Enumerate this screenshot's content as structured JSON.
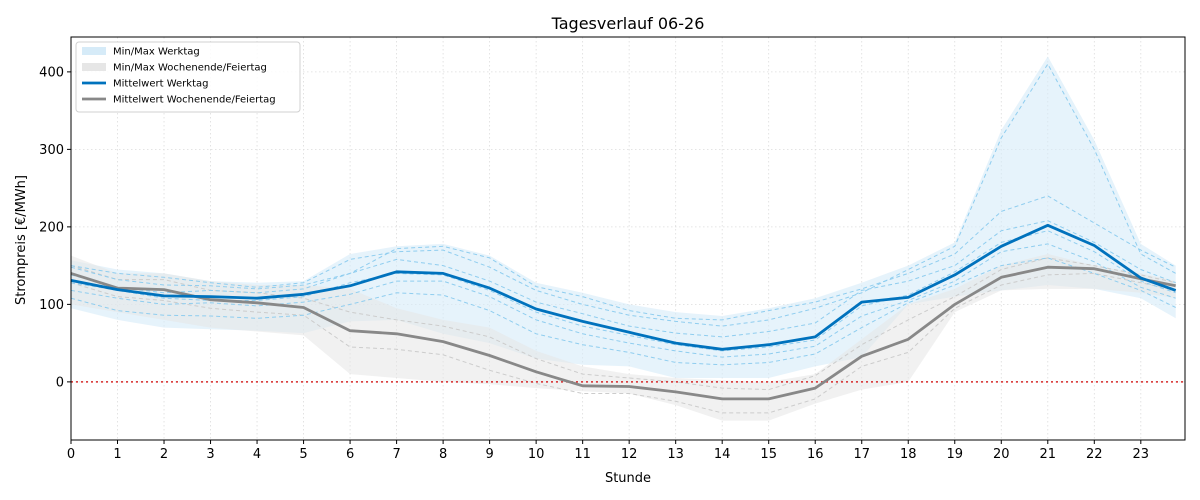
{
  "chart_data": {
    "type": "line",
    "title": "Tagesverlauf 06-26",
    "xlabel": "Stunde",
    "ylabel": "Strompreis [€/MWh]",
    "xlim": [
      0,
      23.95
    ],
    "ylim": [
      -75,
      445
    ],
    "x_ticks": [
      0,
      1,
      2,
      3,
      4,
      5,
      6,
      7,
      8,
      9,
      10,
      11,
      12,
      13,
      14,
      15,
      16,
      17,
      18,
      19,
      20,
      21,
      22,
      23
    ],
    "y_ticks": [
      0,
      100,
      200,
      300,
      400
    ],
    "grid": true,
    "legend_position": "top-left",
    "colors": {
      "weekday": "#0072bd",
      "weekday_band": "#d6ebf8",
      "weekday_daily": "#8fcdef",
      "weekend": "#888888",
      "weekend_band": "#e6e6e6",
      "weekend_daily": "#cccccc",
      "zero_line": "#d62728"
    },
    "legend": [
      {
        "label": "Min/Max Werktag",
        "kind": "band",
        "color": "#d6ebf8"
      },
      {
        "label": "Min/Max Wochenende/Feiertag",
        "kind": "band",
        "color": "#e6e6e6"
      },
      {
        "label": "Mittelwert Werktag",
        "kind": "line",
        "color": "#0072bd"
      },
      {
        "label": "Mittelwert Wochenende/Feiertag",
        "kind": "line",
        "color": "#888888"
      }
    ],
    "reference_line": {
      "y": 0,
      "style": "dotted",
      "color": "#d62728"
    },
    "x_hours": [
      0,
      1,
      2,
      3,
      4,
      5,
      6,
      7,
      8,
      9,
      10,
      11,
      12,
      13,
      14,
      15,
      16,
      17,
      18,
      19,
      20,
      21,
      22,
      23,
      23.75
    ],
    "series": [
      {
        "name": "Mittelwert Werktag",
        "role": "weekday_mean",
        "values": [
          131,
          119,
          111,
          110,
          108,
          113,
          124,
          142,
          140,
          121,
          94,
          78,
          64,
          50,
          42,
          48,
          58,
          103,
          109,
          138,
          175,
          202,
          176,
          134,
          118
        ]
      },
      {
        "name": "Mittelwert Wochenende/Feiertag",
        "role": "weekend_mean",
        "values": [
          140,
          121,
          119,
          106,
          102,
          96,
          66,
          62,
          52,
          34,
          13,
          -5,
          -6,
          -13,
          -22,
          -22,
          -8,
          33,
          55,
          100,
          135,
          148,
          146,
          133,
          124
        ]
      },
      {
        "name": "Min/Max Werktag",
        "role": "weekday_band",
        "min": [
          95,
          80,
          70,
          68,
          66,
          63,
          78,
          80,
          62,
          50,
          30,
          22,
          20,
          5,
          5,
          5,
          20,
          32,
          100,
          110,
          118,
          125,
          120,
          108,
          82
        ],
        "max": [
          157,
          145,
          140,
          130,
          128,
          130,
          165,
          175,
          178,
          163,
          128,
          115,
          100,
          90,
          85,
          95,
          108,
          128,
          150,
          180,
          325,
          420,
          312,
          178,
          150
        ]
      },
      {
        "name": "Min/Max Wochenende/Feiertag",
        "role": "weekend_band",
        "min": [
          100,
          90,
          80,
          70,
          65,
          60,
          10,
          5,
          0,
          -3,
          -8,
          -12,
          -15,
          -30,
          -50,
          -50,
          -28,
          -10,
          0,
          90,
          118,
          120,
          120,
          115,
          108
        ],
        "max": [
          163,
          140,
          140,
          130,
          125,
          125,
          120,
          95,
          80,
          70,
          40,
          20,
          10,
          5,
          2,
          0,
          10,
          55,
          100,
          120,
          150,
          165,
          150,
          140,
          130
        ]
      }
    ],
    "daily_curves_weekday": [
      [
        148,
        132,
        125,
        124,
        120,
        125,
        140,
        172,
        175,
        160,
        123,
        110,
        92,
        82,
        80,
        92,
        103,
        120,
        140,
        165,
        220,
        240,
        205,
        170,
        148
      ],
      [
        138,
        122,
        115,
        118,
        115,
        120,
        140,
        158,
        150,
        130,
        103,
        88,
        72,
        63,
        58,
        65,
        76,
        118,
        130,
        150,
        195,
        208,
        180,
        145,
        128
      ],
      [
        128,
        118,
        108,
        105,
        105,
        110,
        128,
        140,
        138,
        118,
        90,
        72,
        60,
        48,
        40,
        45,
        54,
        98,
        112,
        142,
        180,
        195,
        168,
        130,
        115
      ],
      [
        118,
        108,
        100,
        102,
        98,
        103,
        113,
        130,
        130,
        110,
        80,
        62,
        50,
        40,
        32,
        36,
        46,
        85,
        105,
        130,
        168,
        178,
        155,
        122,
        108
      ],
      [
        108,
        92,
        86,
        85,
        82,
        86,
        100,
        115,
        112,
        92,
        62,
        48,
        38,
        25,
        22,
        25,
        36,
        70,
        102,
        125,
        150,
        160,
        140,
        118,
        96
      ],
      [
        150,
        140,
        135,
        128,
        122,
        128,
        158,
        168,
        170,
        148,
        118,
        100,
        86,
        78,
        72,
        80,
        95,
        115,
        145,
        175,
        315,
        410,
        300,
        165,
        140
      ]
    ],
    "daily_curves_weekend": [
      [
        150,
        132,
        132,
        118,
        115,
        108,
        90,
        80,
        72,
        58,
        30,
        10,
        5,
        0,
        -8,
        -10,
        8,
        48,
        80,
        110,
        145,
        160,
        150,
        138,
        128
      ],
      [
        128,
        110,
        105,
        95,
        90,
        86,
        45,
        42,
        35,
        15,
        -2,
        -15,
        -15,
        -25,
        -40,
        -40,
        -22,
        20,
        38,
        95,
        125,
        138,
        140,
        128,
        118
      ]
    ]
  }
}
